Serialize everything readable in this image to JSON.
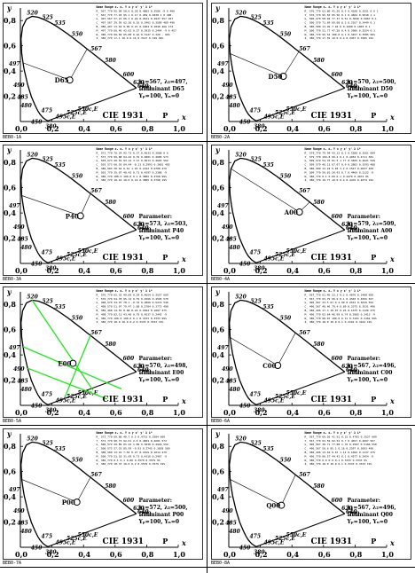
{
  "chart_data": [
    {
      "type": "scatter",
      "title": "CIE 1931",
      "xlabel": "x",
      "ylabel": "y",
      "white_label": "D65",
      "caption": "BEB0-1A",
      "parameter_title": "",
      "parameter_lines": [
        "λ₁=567, λ₂=497,",
        "Illuminant D65",
        "Yₚ=100, Yₙ=0"
      ],
      "white": [
        0.3127,
        0.329
      ],
      "dominant_lines": false,
      "table_header": [
        "Name",
        "Range",
        "xₑ",
        "xₑ",
        "Y",
        "x",
        "y",
        "x'",
        "y'",
        "λ",
        "L*"
      ],
      "table_rows": [
        "R_ 567_770 95.09 50.0 0.28 0.4882 0.3586 -9 6 400",
        "Y_ 567_770 77.93 95.1 0.17 0.459 0.4838 1 0 400",
        "G_ 497_567 37.21 66.3 0.29 0.2631 0.4937 557 457",
        "C_ 497_567 29.95 62.16 0.16 0.2461 0.3589 489 496",
        "B_ 380_497 13.62 9.09 0.21 0.1604 0.1049 466 174",
        "M_ 497_770 60.40 42.62 0.27 0.3915 0.2464 -9 6 457",
        "N_ 380_770 99.69 65.08 0.16 0.3127 0.329 - 99%",
        "Z_ 380_770 17.1 10.0 0.16 0.3127 0.329 99%"
      ]
    },
    {
      "type": "scatter",
      "title": "CIE 1931",
      "xlabel": "x",
      "ylabel": "y",
      "white_label": "D50",
      "caption": "BEB0-2A",
      "parameter_title": "",
      "parameter_lines": [
        "λ₁=570, λ₂=500,",
        "Illuminant D50",
        "Yₚ=100, Yₙ=0"
      ],
      "white": [
        0.3457,
        0.3585
      ],
      "dominant_lines": false,
      "table_header": [
        "Name",
        "Range",
        "xₑ",
        "xₑ",
        "Y",
        "x",
        "y",
        "x'",
        "y'",
        "λ",
        "L*"
      ],
      "table_rows": [
        "R_ 570_770 63.80 41.26 0.5 0.4108 0.3551 0 0 1",
        "Y_ 570_770 95.55 95.56 0.1 0.4604 0.5018 1 1",
        "G_ 500_570 58.02 77.37 0.51 0.3040 0.5067 0.1",
        "C_ 500_570 71.69 69.08 0.2 0.2167 0.3449 0.1",
        "B_ 380_500 13.49 7.94 0 0.1608 0.1003 0.1",
        "M_ 500_770 51.77 47.28 0.4 0.3906 0.2554 0.1",
        "N_ 380_770 95.54 100.0 0.1 0.3457 0.3585 99%",
        "Z_ 380_770 17.59 10.0 0.4 0.3457 0.3585 19%"
      ]
    },
    {
      "type": "scatter",
      "title": "CIE 1931",
      "xlabel": "x",
      "ylabel": "y",
      "white_label": "P40",
      "caption": "BEB0-3A",
      "parameter_title": "Parameter:",
      "parameter_lines": [
        "λ₁=573, λ₂=503,",
        "Illuminant P40",
        "Yₚ=100, Yₙ=0"
      ],
      "white": [
        0.3805,
        0.3768
      ],
      "dominant_lines": false,
      "table_header": [
        "Name",
        "Range",
        "xₑ",
        "xₑ",
        "Y",
        "x",
        "y",
        "x'",
        "y'",
        "λ",
        "L*"
      ],
      "table_rows": [
        "R_ 573_770 70.24 42.73 0.37 0.4633 0.3608 0 6",
        "Y_ 573_770 99.88 94.42 0.76 0.4801 0.4685 573",
        "G_ 503_573 20.01 93.12 3.17 0.3673 0.4693 562",
        "C_ 503_573 60.93 84.44 -0.13 0.2993 0.3601 495",
        "B_ 380_503 30.64 6.61 1.93 0.1343 0.0708 476",
        "M_ 503_770 39.87 40.42 0.71 0.4297 0.2386 -9",
        "N_ 380_770 100.0 100.0 0.1 0.3805 0.3768 99%",
        "Z_ 380_770 18.16 10.0 0.16 0.3805 0.3768 19%"
      ]
    },
    {
      "type": "scatter",
      "title": "CIE 1931",
      "xlabel": "x",
      "ylabel": "y",
      "white_label": "A00",
      "caption": "BEB0-4A",
      "parameter_title": "Parameter:",
      "parameter_lines": [
        "λ₁=579, λ₂=509,",
        "Illuminant A00",
        "Yₚ=100, Yₙ=0"
      ],
      "white": [
        0.4476,
        0.4074
      ],
      "dominant_lines": false,
      "table_header": [
        "Name",
        "Range",
        "xₑ",
        "xₑ",
        "Y",
        "x",
        "y",
        "x'",
        "y'",
        "λ",
        "L*"
      ],
      "table_rows": [
        "R_ 579_770 79.94 43.12 0.2 0.5288 0.3561 609",
        "Y_ 579_770 104.8 99.2 0.1 0.4954 0.4711 581",
        "G_ 509_579 54.76 91.5 1.77 0.3565 0.4621 549",
        "C_ 509_579 46.12 67.07 0.9 0.2803 0.3593 488",
        "B_ 380_509 12.22 5.03 3.2 0.1547 0.0637 469",
        "M_ 509_770 56.81 26.93 0.7 0.4469 0.2122 -9",
        "N_ 380_770 0.1 0.09 0.1 0.4476 0.4074 0%",
        "Z_ 380_770 19.77 10.0 0.4 0.4476 0.4074 19%"
      ]
    },
    {
      "type": "scatter",
      "title": "CIE 1931",
      "xlabel": "x",
      "ylabel": "y",
      "white_label": "E00",
      "caption": "BEB0-5A",
      "parameter_title": "Parameter:",
      "parameter_lines": [
        "λ₁=570, λ₂=498,",
        "Illuminant E00",
        "Yₚ=100, Yₙ=0"
      ],
      "white": [
        0.3333,
        0.3333
      ],
      "dominant_lines": true,
      "table_header": [
        "Name",
        "Range",
        "xₑ",
        "xₑ",
        "Y",
        "x",
        "y",
        "x'",
        "y'",
        "λ",
        "L*"
      ],
      "table_rows": [
        "R_ 570_770 65.32 40.69 0.24 0.4654 0.3557 609",
        "Y_ 570_770 94.78 95.12 0.79 0.4566 0.4595 570",
        "G_ 498_570 34.97 78.1 -0.76 0.2866 0.5272 549",
        "C_ 498_570 51.07 79.47 1.08 0.2784 0.3773 498",
        "B_ 380_498 14.55 8.68 0.24 0.1842 0.1007 475",
        "M_ 498_770 82.11 43.48 0.79 0.4537 0.2442 -9",
        "N_ 380_770 100.0 100.0 0.1 0.3333 0.3333 99%",
        "Z_ 380_770 18.0 10.0 0.2 0.3333 0.3333 19%"
      ]
    },
    {
      "type": "scatter",
      "title": "CIE 1931",
      "xlabel": "x",
      "ylabel": "y",
      "white_label": "C00",
      "caption": "BEB0-6A",
      "parameter_title": "Parameter:",
      "parameter_lines": [
        "λ₁=567, λ₂=496,",
        "Illuminant C00",
        "Yₚ=100, Yₙ=0"
      ],
      "white": [
        0.3101,
        0.3162
      ],
      "dominant_lines": false,
      "table_header": [
        "Name",
        "Range",
        "xₑ",
        "xₑ",
        "Y",
        "x",
        "y",
        "x'",
        "y'",
        "λ",
        "L*"
      ],
      "table_rows": [
        "R_ 567_770 61.46 33.3 0.2 0.4876 0.3488 609",
        "Y_ 567_770 93.79 96.9 0.1 0.4503 0.4656 567",
        "G_ 496_567 33.5 67.0 4.99 0.2613 0.5019 552",
        "C_ 496_567 48.46 79.4 0.89 0.2375 0.3531 496",
        "B_ 380_496 17.3 10.07 0.26 0.1675 0.1126 475",
        "M_ 496_770 62.64 46.99 0.74 0.3985 0.2413 -9",
        "N_ 380_770 98.07 100.0 0.11 0.3101 0.3162 99%",
        "Z_ 380_770 18.0 10.0 0.1 0.3101 0.3162 19%"
      ]
    },
    {
      "type": "scatter",
      "title": "CIE 1931",
      "xlabel": "x",
      "ylabel": "y",
      "white_label": "P00",
      "caption": "BEB0-7A",
      "parameter_title": "Parameter:",
      "parameter_lines": [
        "λ₁=572, λ₂=500,",
        "Illuminant P00",
        "Yₚ=100, Yₙ=0"
      ],
      "white": [
        0.3579,
        0.3579
      ],
      "dominant_lines": false,
      "table_header": [
        "Name",
        "Range",
        "xₑ",
        "xₑ",
        "Y",
        "x",
        "y",
        "x'",
        "y'",
        "λ",
        "L*"
      ],
      "table_rows": [
        "R_ 572_770 69.80 40.7 0.5 0.4733 0.3584 609",
        "Y_ 572_770 98.73 92.61 2.0 0.4604 0.4681 572",
        "G_ 500_572 29.89 81.42 1.89 0.3038 0.4929 552",
        "C_ 500_572 57.25 85.99 -0.93 0.2745 0.3838 500",
        "B_ 380_500 13.91 7.54 0.27 0.1819 0.1014 476",
        "M_ 500_770 53.18 31.69 0.73 0.4316 0.2467 -9",
        "N_ 380_770 0.1 0.1 0.00 0.3579 0.3579 0%",
        "Z_ 380_770 18.37 10.0 0.2 0.3579 0.3579 19%"
      ]
    },
    {
      "type": "scatter",
      "title": "CIE 1931",
      "xlabel": "x",
      "ylabel": "y",
      "white_label": "Q00",
      "caption": "BEB0-8A",
      "parameter_title": "Parameter:",
      "parameter_lines": [
        "λ₁=567, λ₂=496,",
        "Illuminant Q00",
        "Yₚ=100, Yₙ=0"
      ],
      "white": [
        0.3333,
        0.3333
      ],
      "dominant_lines": false,
      "table_header": [
        "Name",
        "Range",
        "xₑ",
        "xₑ",
        "Y",
        "x",
        "y",
        "x'",
        "y'",
        "λ",
        "L*"
      ],
      "table_rows": [
        "R_ 567_770 69.26 41.91 0.15 0.4783 0.3527 609",
        "Y_ 567_770 93.59 92.54 0.7 0.4657 0.4667 567",
        "G_ 496_567 30.71 77.08 1.76 0.2567 0.5166 550",
        "C_ 496_567 50.6 85.2 0.16 0.2597 0.3693 496",
        "B_ 380_496 13.62 9.67 1.14 0.1692 0.1137 475",
        "M_ 496_770 80.57 44.43 0.1 0.4577 0.2454 -9",
        "N_ 380_770 0.9 0.9 0.1 0.3333 0.3333 0%",
        "Z_ 380_770 18.0 10.0 0.1 0.3333 0.3333 19%"
      ]
    }
  ],
  "locus_labels": [
    "520",
    "525",
    "535",
    "550",
    "567",
    "580",
    "600",
    "620",
    "640",
    "700",
    "490",
    "497",
    "485",
    "480",
    "475",
    "450",
    "380"
  ],
  "purple_labels": [
    "495c,E",
    "525c,E",
    "550c,E"
  ],
  "axis_ticks_x": [
    "0,0",
    "0,2",
    "0,4",
    "0,6",
    "0,8",
    "1,0"
  ],
  "axis_ticks_y": [
    "0,2",
    "0,4",
    "0,6",
    "0,8"
  ],
  "axis_x_label": "x",
  "axis_y_label": "y",
  "purple_line_end_label": "P"
}
